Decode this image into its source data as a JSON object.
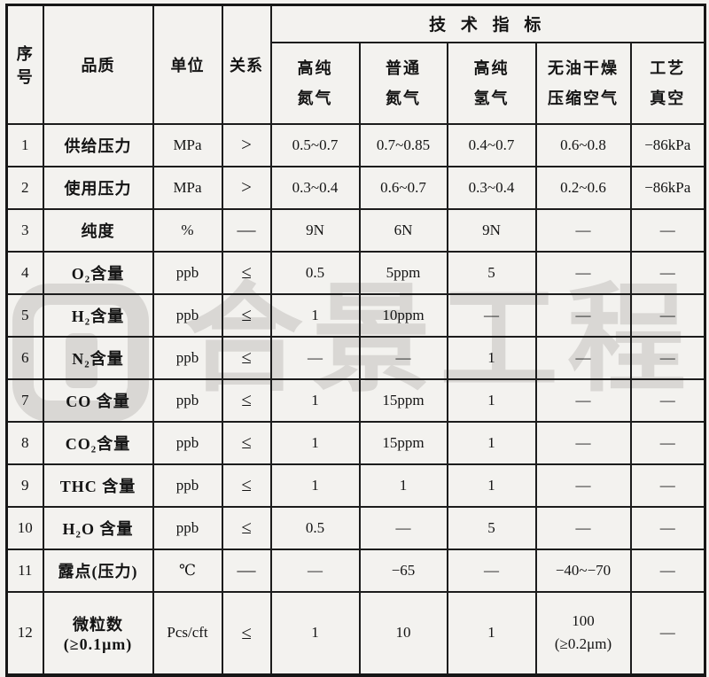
{
  "watermark": {
    "text": "合景工程",
    "color": "#d9d7d4"
  },
  "table": {
    "header": {
      "col_no": "序号",
      "col_quality": "品质",
      "col_unit": "单位",
      "col_relation": "关系",
      "tech_span": "技 术 指 标",
      "gas_columns": [
        "高纯\n氮气",
        "普通\n氮气",
        "高纯\n氢气",
        "无油干燥\n压缩空气",
        "工艺\n真空"
      ]
    },
    "rows": [
      {
        "no": "1",
        "quality": "供给压力",
        "unit": "MPa",
        "relation": ">",
        "values": [
          "0.5~0.7",
          "0.7~0.85",
          "0.4~0.7",
          "0.6~0.8",
          "−86kPa"
        ]
      },
      {
        "no": "2",
        "quality": "使用压力",
        "unit": "MPa",
        "relation": ">",
        "values": [
          "0.3~0.4",
          "0.6~0.7",
          "0.3~0.4",
          "0.2~0.6",
          "−86kPa"
        ]
      },
      {
        "no": "3",
        "quality": "纯度",
        "unit": "%",
        "relation": "—",
        "values": [
          "9N",
          "6N",
          "9N",
          "—",
          "—"
        ]
      },
      {
        "no": "4",
        "quality": "O₂含量",
        "unit": "ppb",
        "relation": "≤",
        "values": [
          "0.5",
          "5ppm",
          "5",
          "—",
          "—"
        ]
      },
      {
        "no": "5",
        "quality": "H₂含量",
        "unit": "ppb",
        "relation": "≤",
        "values": [
          "1",
          "10ppm",
          "—",
          "—",
          "—"
        ]
      },
      {
        "no": "6",
        "quality": "N₂含量",
        "unit": "ppb",
        "relation": "≤",
        "values": [
          "—",
          "—",
          "1",
          "—",
          "—"
        ]
      },
      {
        "no": "7",
        "quality": "CO 含量",
        "unit": "ppb",
        "relation": "≤",
        "values": [
          "1",
          "15ppm",
          "1",
          "—",
          "—"
        ]
      },
      {
        "no": "8",
        "quality": "CO₂含量",
        "unit": "ppb",
        "relation": "≤",
        "values": [
          "1",
          "15ppm",
          "1",
          "—",
          "—"
        ]
      },
      {
        "no": "9",
        "quality": "THC 含量",
        "unit": "ppb",
        "relation": "≤",
        "values": [
          "1",
          "1",
          "1",
          "—",
          "—"
        ]
      },
      {
        "no": "10",
        "quality": "H₂O 含量",
        "unit": "ppb",
        "relation": "≤",
        "values": [
          "0.5",
          "—",
          "5",
          "—",
          "—"
        ]
      },
      {
        "no": "11",
        "quality": "露点(压力)",
        "unit": "℃",
        "relation": "—",
        "values": [
          "—",
          "−65",
          "—",
          "−40~−70",
          "—"
        ]
      },
      {
        "no": "12",
        "quality": "微粒数\n(≥0.1μm)",
        "unit": "Pcs/cft",
        "relation": "≤",
        "values": [
          "1",
          "10",
          "1",
          "100\n(≥0.2μm)",
          "—"
        ]
      }
    ]
  }
}
